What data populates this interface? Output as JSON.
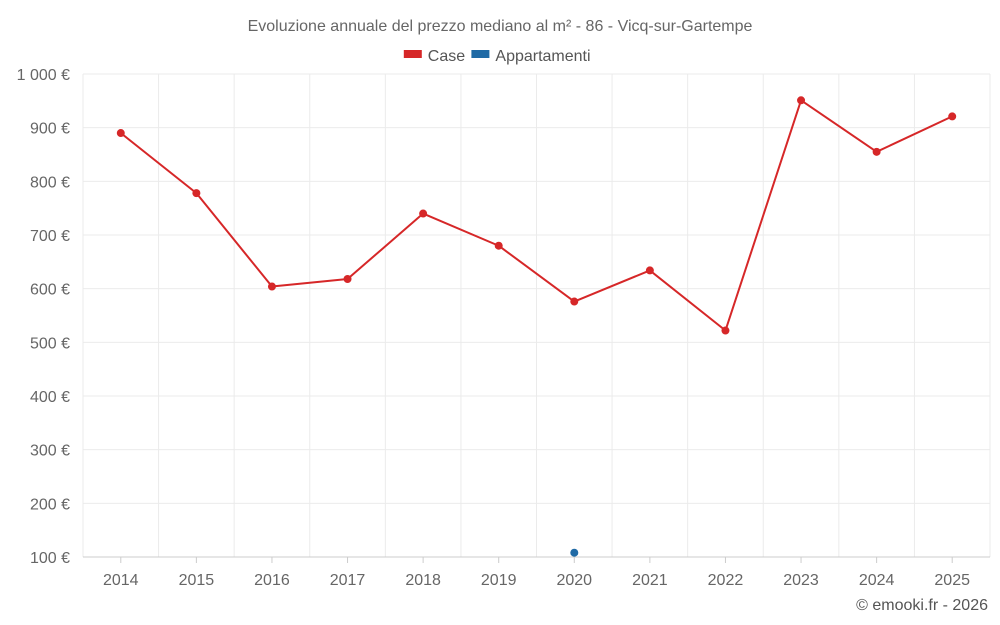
{
  "chart_data": {
    "type": "line",
    "title": "Evoluzione annuale del prezzo mediano al m² - 86 - Vicq-sur-Gartempe",
    "categories": [
      "2014",
      "2015",
      "2016",
      "2017",
      "2018",
      "2019",
      "2020",
      "2021",
      "2022",
      "2023",
      "2024",
      "2025"
    ],
    "series": [
      {
        "name": "Case",
        "color": "#d62728",
        "values": [
          890,
          778,
          604,
          618,
          740,
          680,
          576,
          634,
          522,
          951,
          855,
          921
        ]
      },
      {
        "name": "Appartamenti",
        "color": "#1f6aa5",
        "values": [
          null,
          null,
          null,
          null,
          null,
          null,
          108,
          null,
          null,
          null,
          null,
          null
        ]
      }
    ],
    "y_ticks": [
      100,
      200,
      300,
      400,
      500,
      600,
      700,
      800,
      900,
      1000
    ],
    "y_tick_labels": [
      "100 €",
      "200 €",
      "300 €",
      "400 €",
      "500 €",
      "600 €",
      "700 €",
      "800 €",
      "900 €",
      "1 000 €"
    ],
    "ylim": [
      100,
      1000
    ],
    "legend_position": "top-center",
    "grid": true
  },
  "credit": "© emooki.fr - 2026"
}
